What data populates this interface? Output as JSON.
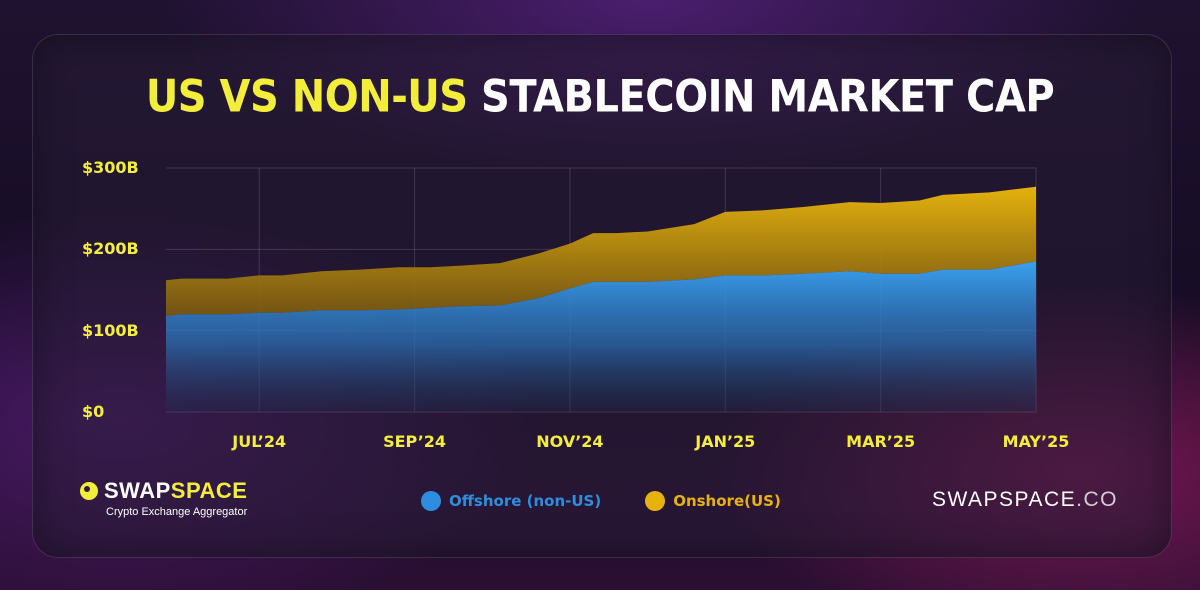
{
  "brand": {
    "name_part1": "SWAP",
    "name_part2": "SPACE",
    "tagline": "Crypto Exchange Aggregator",
    "site_part1": "SWAPSPACE",
    "site_part2": ".CO"
  },
  "colors": {
    "accent_yellow": "#f3ee3a",
    "offshore_blue": "#2f8de0",
    "onshore_gold": "#e8b20c"
  },
  "chart_data": {
    "type": "area",
    "stacked": true,
    "title_highlight": "US VS NON-US",
    "title_rest": "STABLECOIN MARKET CAP",
    "xlabel": "",
    "ylabel": "",
    "ylim": [
      0,
      300
    ],
    "y_ticks": [
      "$300B",
      "$200B",
      "$100B",
      "$0"
    ],
    "y_tick_values": [
      300,
      200,
      100,
      0
    ],
    "x_ticks": [
      "JUL’24",
      "SEP’24",
      "NOV’24",
      "JAN’25",
      "MAR’25",
      "MAY’25"
    ],
    "x_tick_values": [
      1.0,
      3.0,
      5.0,
      7.0,
      9.0,
      11.0
    ],
    "x_range": [
      -0.2,
      11.0
    ],
    "grid": true,
    "legend_position": "bottom-center",
    "series": [
      {
        "name": "Offshore (non-US)",
        "color": "#2f8de0",
        "points": [
          [
            -0.2,
            118
          ],
          [
            0.0,
            120
          ],
          [
            0.6,
            120
          ],
          [
            1.0,
            122
          ],
          [
            1.3,
            122
          ],
          [
            1.8,
            125
          ],
          [
            2.3,
            125
          ],
          [
            2.8,
            126
          ],
          [
            3.2,
            128
          ],
          [
            3.6,
            130
          ],
          [
            4.1,
            131
          ],
          [
            4.6,
            140
          ],
          [
            5.0,
            152
          ],
          [
            5.3,
            160
          ],
          [
            5.6,
            160
          ],
          [
            6.0,
            160
          ],
          [
            6.6,
            163
          ],
          [
            7.0,
            168
          ],
          [
            7.5,
            168
          ],
          [
            8.0,
            170
          ],
          [
            8.6,
            173
          ],
          [
            9.0,
            170
          ],
          [
            9.5,
            170
          ],
          [
            9.8,
            175
          ],
          [
            10.4,
            175
          ],
          [
            11.0,
            185
          ]
        ]
      },
      {
        "name": "Onshore(US)",
        "color": "#e8b20c",
        "points": [
          [
            -0.2,
            44
          ],
          [
            0.0,
            44
          ],
          [
            0.6,
            44
          ],
          [
            1.0,
            46
          ],
          [
            1.3,
            46
          ],
          [
            1.8,
            48
          ],
          [
            2.3,
            50
          ],
          [
            2.8,
            52
          ],
          [
            3.2,
            50
          ],
          [
            3.6,
            50
          ],
          [
            4.1,
            52
          ],
          [
            4.6,
            55
          ],
          [
            5.0,
            55
          ],
          [
            5.3,
            60
          ],
          [
            5.6,
            60
          ],
          [
            6.0,
            62
          ],
          [
            6.6,
            68
          ],
          [
            7.0,
            78
          ],
          [
            7.5,
            80
          ],
          [
            8.0,
            82
          ],
          [
            8.6,
            85
          ],
          [
            9.0,
            87
          ],
          [
            9.5,
            90
          ],
          [
            9.8,
            92
          ],
          [
            10.4,
            95
          ],
          [
            11.0,
            92
          ]
        ]
      }
    ]
  }
}
